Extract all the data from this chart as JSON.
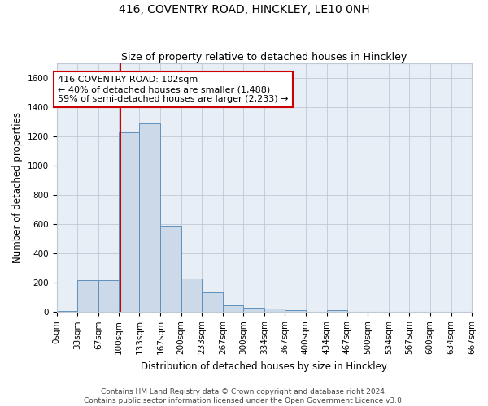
{
  "title": "416, COVENTRY ROAD, HINCKLEY, LE10 0NH",
  "subtitle": "Size of property relative to detached houses in Hinckley",
  "xlabel": "Distribution of detached houses by size in Hinckley",
  "ylabel": "Number of detached properties",
  "bar_values": [
    10,
    220,
    220,
    1230,
    1290,
    590,
    230,
    135,
    45,
    30,
    25,
    15,
    0,
    15,
    0,
    0,
    0,
    0,
    0,
    0
  ],
  "bin_edges": [
    0,
    33,
    67,
    100,
    133,
    167,
    200,
    233,
    267,
    300,
    334,
    367,
    400,
    434,
    467,
    500,
    534,
    567,
    600,
    634,
    667
  ],
  "bar_color": "#ccd9e8",
  "bar_edge_color": "#6090bb",
  "property_size": 102,
  "annotation_line1": "416 COVENTRY ROAD: 102sqm",
  "annotation_line2": "← 40% of detached houses are smaller (1,488)",
  "annotation_line3": "59% of semi-detached houses are larger (2,233) →",
  "annotation_box_color": "#ffffff",
  "annotation_box_edge_color": "#cc0000",
  "vline_color": "#cc0000",
  "vline_x": 102,
  "ylim": [
    0,
    1700
  ],
  "yticks": [
    0,
    200,
    400,
    600,
    800,
    1000,
    1200,
    1400,
    1600
  ],
  "grid_color": "#c0c8d8",
  "bg_color": "#e8eef5",
  "footer_text": "Contains HM Land Registry data © Crown copyright and database right 2024.\nContains public sector information licensed under the Open Government Licence v3.0.",
  "title_fontsize": 10,
  "subtitle_fontsize": 9,
  "axis_label_fontsize": 8.5,
  "tick_fontsize": 7.5,
  "annotation_fontsize": 8,
  "footer_fontsize": 6.5
}
